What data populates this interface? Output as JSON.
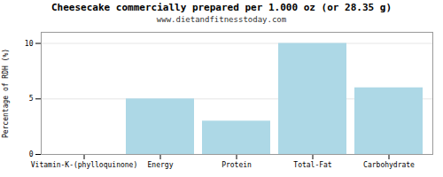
{
  "chart_data": {
    "type": "bar",
    "title": "Cheesecake commercially prepared per 1.000 oz (or 28.35 g)",
    "subtitle": "www.dietandfitnesstoday.com",
    "ylabel": "Percentage of RDH (%)",
    "categories": [
      "Vitamin-K-(phylloquinone)",
      "Energy",
      "Protein",
      "Total-Fat",
      "Carbohydrate"
    ],
    "values": [
      0,
      5,
      3,
      10,
      6
    ],
    "color": "#add8e6",
    "ylim": [
      0,
      11
    ],
    "yticks": [
      0,
      5,
      10
    ],
    "grid": true
  }
}
